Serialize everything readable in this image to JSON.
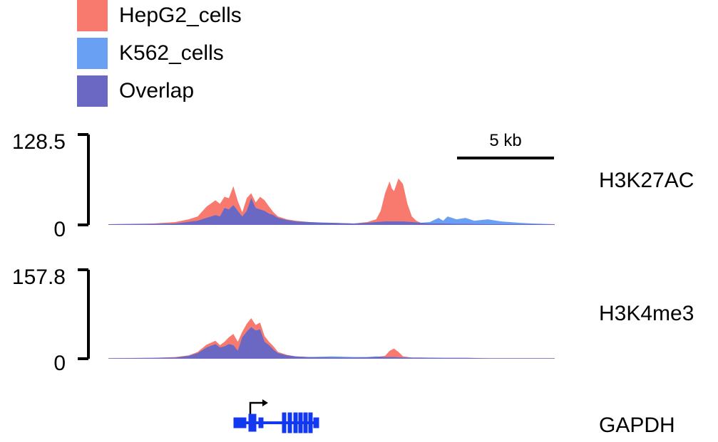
{
  "legend": [
    {
      "label": "HepG2_cells",
      "color": "#f87a6f"
    },
    {
      "label": "K562_cells",
      "color": "#6aa0f4"
    },
    {
      "label": "Overlap",
      "color": "#6b68c4"
    }
  ],
  "scale_bar": {
    "label": "5 kb"
  },
  "gene": {
    "name": "GAPDH",
    "color": "#1238f0"
  },
  "chart_data": {
    "type": "area",
    "x_range": [
      0,
      100
    ],
    "tracks": [
      {
        "name": "H3K27AC",
        "ylim": [
          0,
          128.5
        ],
        "y_tick_labels": [
          "128.5",
          "0"
        ],
        "series": [
          {
            "name": "HepG2_cells",
            "x": [
              0,
              5,
              10,
              15,
              18,
              20,
              22,
              24,
              25,
              26,
              27,
              28,
              29,
              30,
              31,
              32,
              33,
              34,
              35,
              36,
              37,
              38,
              40,
              42,
              45,
              48,
              50,
              55,
              58,
              60,
              61,
              62,
              63,
              63.5,
              64,
              65,
              66,
              66.5,
              67,
              68,
              69,
              70,
              72,
              75,
              78,
              80,
              85,
              90,
              95,
              100
            ],
            "y": [
              1,
              1.5,
              2,
              4,
              8,
              12,
              26,
              35,
              30,
              40,
              38,
              55,
              34,
              18,
              38,
              45,
              32,
              40,
              35,
              26,
              18,
              12,
              8,
              6,
              4,
              3,
              3,
              2,
              4,
              8,
              20,
              45,
              62,
              52,
              48,
              66,
              58,
              44,
              30,
              12,
              6,
              3,
              2,
              2,
              1.5,
              1.5,
              1,
              1,
              1,
              1
            ]
          },
          {
            "name": "K562_cells",
            "x": [
              0,
              10,
              15,
              20,
              22,
              24,
              25,
              26,
              27,
              28,
              29,
              30,
              31,
              32,
              33,
              34,
              35,
              36,
              37,
              38,
              40,
              42,
              45,
              50,
              55,
              58,
              60,
              62,
              64,
              66,
              68,
              70,
              72,
              74,
              75,
              76,
              78,
              80,
              82,
              85,
              88,
              90,
              92,
              95,
              100
            ],
            "y": [
              1,
              1.5,
              2,
              6,
              10,
              14,
              12,
              24,
              22,
              28,
              20,
              12,
              20,
              38,
              24,
              22,
              20,
              16,
              14,
              10,
              7,
              5,
              4,
              3,
              2,
              3,
              4,
              5,
              5,
              5,
              4,
              3,
              4,
              10,
              6,
              12,
              8,
              10,
              6,
              8,
              5,
              4,
              3,
              2,
              1
            ]
          }
        ]
      },
      {
        "name": "H3K4me3",
        "ylim": [
          0,
          157.8
        ],
        "y_tick_labels": [
          "157.8",
          "0"
        ],
        "series": [
          {
            "name": "HepG2_cells",
            "x": [
              0,
              10,
              15,
              18,
              20,
              22,
              24,
              25,
              26,
              27,
              28,
              29,
              30,
              31,
              32,
              33,
              34,
              35,
              36,
              37,
              38,
              40,
              42,
              45,
              50,
              55,
              60,
              62,
              63,
              64,
              65,
              66,
              68,
              70,
              75,
              80,
              85,
              90,
              95,
              100
            ],
            "y": [
              1,
              1.5,
              3,
              6,
              12,
              25,
              32,
              24,
              30,
              38,
              44,
              30,
              48,
              62,
              72,
              60,
              64,
              40,
              30,
              22,
              12,
              7,
              4,
              3,
              2,
              2,
              3,
              5,
              14,
              18,
              12,
              4,
              2,
              2,
              1.5,
              1.5,
              1,
              1,
              1,
              1
            ]
          },
          {
            "name": "K562_cells",
            "x": [
              0,
              10,
              15,
              18,
              20,
              22,
              24,
              25,
              26,
              27,
              28,
              29,
              30,
              31,
              32,
              33,
              34,
              35,
              36,
              37,
              38,
              40,
              42,
              45,
              50,
              55,
              58,
              60,
              62,
              64,
              66,
              68,
              70,
              75,
              80,
              85,
              90,
              95,
              100
            ],
            "y": [
              1,
              1.5,
              2,
              5,
              10,
              20,
              26,
              20,
              22,
              26,
              24,
              14,
              38,
              48,
              56,
              50,
              52,
              30,
              24,
              16,
              10,
              6,
              4,
              3,
              4,
              3,
              3,
              4,
              3,
              3,
              2,
              2,
              2,
              1.5,
              1.5,
              1,
              1,
              1,
              1
            ]
          }
        ]
      }
    ]
  }
}
